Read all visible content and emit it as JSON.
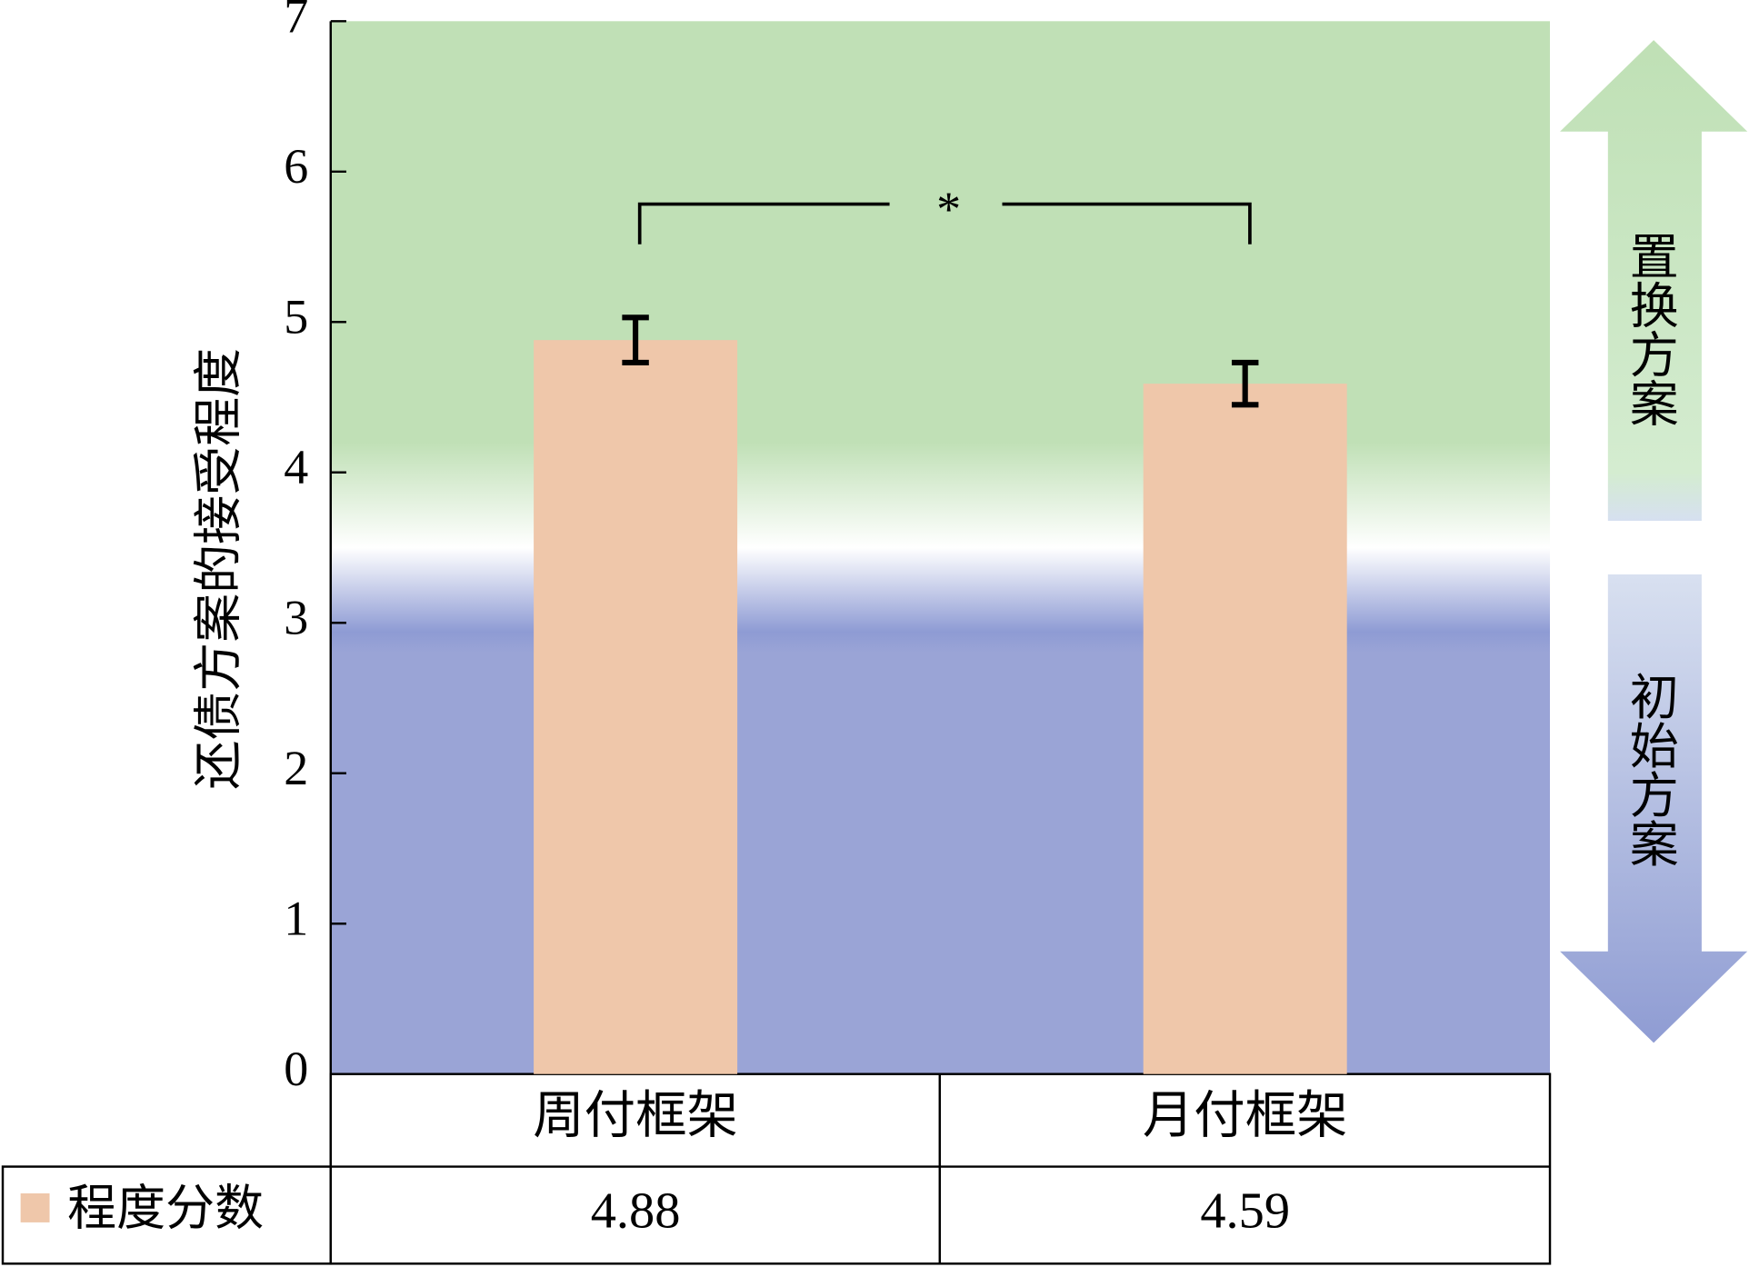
{
  "chart_data": {
    "type": "bar",
    "y_label": "还债方案的接受程度",
    "categories": [
      "周付框架",
      "月付框架"
    ],
    "series": [
      {
        "name": "程度分数",
        "color": "#efc7aa",
        "values": [
          4.88,
          4.59
        ],
        "errors": [
          0.15,
          0.14
        ]
      }
    ],
    "ylim": [
      0,
      7
    ],
    "yticks": [
      0,
      1,
      2,
      3,
      4,
      5,
      6,
      7
    ],
    "significance": "*",
    "upper_region_label": "置换方案",
    "lower_region_label": "初始方案"
  }
}
